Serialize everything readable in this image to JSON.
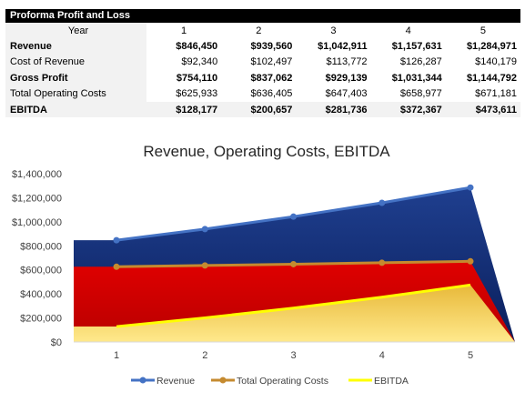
{
  "table": {
    "title": "Proforma Profit and Loss",
    "header_label": "Year",
    "years": [
      "1",
      "2",
      "3",
      "4",
      "5"
    ],
    "rows": [
      {
        "label": "Revenue",
        "bold": true,
        "values": [
          "$846,450",
          "$939,560",
          "$1,042,911",
          "$1,157,631",
          "$1,284,971"
        ]
      },
      {
        "label": "Cost of Revenue",
        "bold": false,
        "values": [
          "$92,340",
          "$102,497",
          "$113,772",
          "$126,287",
          "$140,179"
        ]
      },
      {
        "label": "Gross Profit",
        "bold": true,
        "values": [
          "$754,110",
          "$837,062",
          "$929,139",
          "$1,031,344",
          "$1,144,792"
        ]
      },
      {
        "label": "Total Operating Costs",
        "bold": false,
        "values": [
          "$625,933",
          "$636,405",
          "$647,403",
          "$658,977",
          "$671,181"
        ]
      },
      {
        "label": "EBITDA",
        "bold": true,
        "values": [
          "$128,177",
          "$200,657",
          "$281,736",
          "$372,367",
          "$473,611"
        ]
      }
    ]
  },
  "chart_data": {
    "type": "area",
    "title": "Revenue, Operating Costs, EBITDA",
    "categories": [
      "1",
      "2",
      "3",
      "4",
      "5"
    ],
    "ylim": [
      0,
      1400000
    ],
    "yticks": [
      0,
      200000,
      400000,
      600000,
      800000,
      1000000,
      1200000,
      1400000
    ],
    "ytick_labels": [
      "$0",
      "$200,000",
      "$400,000",
      "$600,000",
      "$800,000",
      "$1,000,000",
      "$1,200,000",
      "$1,400,000"
    ],
    "grid": false,
    "legend_position": "bottom",
    "series": [
      {
        "name": "Revenue",
        "values": [
          846450,
          939560,
          1042911,
          1157631,
          1284971
        ],
        "line_color": "#4472c4",
        "fill_top": "#1f3f8f",
        "fill_bottom": "#0a1f5c",
        "marker": true
      },
      {
        "name": "Total Operating Costs",
        "values": [
          625933,
          636405,
          647403,
          658977,
          671181
        ],
        "line_color": "#c58a2f",
        "fill_top": "#e00000",
        "fill_bottom": "#b80000",
        "marker": true
      },
      {
        "name": "EBITDA",
        "values": [
          128177,
          200657,
          281736,
          372367,
          473611
        ],
        "line_color": "#ffff00",
        "fill_top": "#e8b93a",
        "fill_bottom": "#ffe98c",
        "marker": false
      }
    ]
  }
}
